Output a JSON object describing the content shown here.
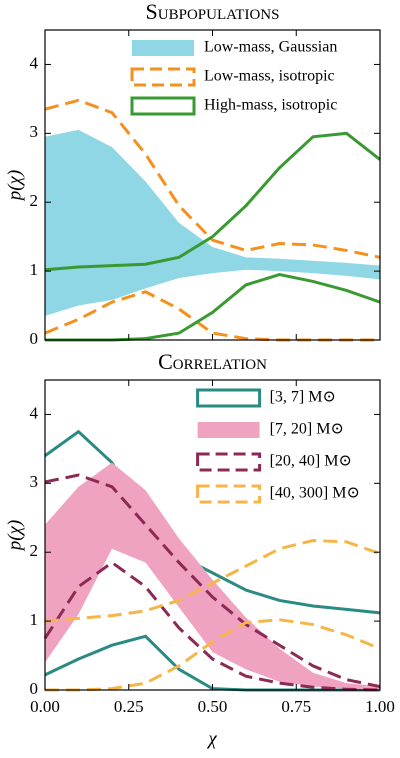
{
  "chart_data": [
    {
      "type": "line",
      "title": "Subpopulations",
      "ylabel": "p(χ)",
      "x": [
        0,
        0.1,
        0.2,
        0.3,
        0.4,
        0.5,
        0.6,
        0.7,
        0.8,
        0.9,
        1.0
      ],
      "xlim": [
        0,
        1
      ],
      "ylim": [
        0,
        4.5
      ],
      "xticks": [
        0,
        0.25,
        0.5,
        0.75,
        1
      ],
      "xticklabels": false,
      "yticks": [
        0,
        1,
        2,
        3,
        4
      ],
      "legend": "upper right",
      "series": [
        {
          "name": "Low-mass, Gaussian",
          "color": "#8fd7e5",
          "style": "fill",
          "upper": [
            2.95,
            3.05,
            2.8,
            2.3,
            1.7,
            1.35,
            1.2,
            1.18,
            1.15,
            1.12,
            1.08
          ],
          "lower": [
            0.35,
            0.5,
            0.58,
            0.75,
            0.9,
            0.97,
            1.02,
            1.0,
            0.97,
            0.93,
            0.88
          ]
        },
        {
          "name": "Low-mass, isotropic",
          "color": "#f5901e",
          "style": "dashed",
          "upper": [
            3.35,
            3.48,
            3.3,
            2.7,
            1.95,
            1.45,
            1.3,
            1.4,
            1.38,
            1.3,
            1.2
          ],
          "lower": [
            0.1,
            0.3,
            0.55,
            0.7,
            0.45,
            0.1,
            0.02,
            0,
            0,
            0,
            0
          ]
        },
        {
          "name": "High-mass, isotropic",
          "color": "#3a9a32",
          "style": "solid",
          "upper": [
            1.02,
            1.06,
            1.08,
            1.1,
            1.2,
            1.5,
            1.95,
            2.5,
            2.95,
            3.0,
            2.62
          ],
          "lower": [
            0,
            0,
            0,
            0.02,
            0.1,
            0.4,
            0.8,
            0.95,
            0.85,
            0.72,
            0.55
          ]
        }
      ]
    },
    {
      "type": "line",
      "title": "Correlation",
      "ylabel": "p(χ)",
      "xlabel": "χ",
      "x": [
        0,
        0.1,
        0.2,
        0.3,
        0.4,
        0.5,
        0.6,
        0.7,
        0.8,
        0.9,
        1.0
      ],
      "xlim": [
        0,
        1
      ],
      "ylim": [
        0,
        4.5
      ],
      "xticks": [
        {
          "value": 0,
          "label": "0.00"
        },
        {
          "value": 0.25,
          "label": "0.25"
        },
        {
          "value": 0.5,
          "label": "0.50"
        },
        {
          "value": 0.75,
          "label": "0.75"
        },
        {
          "value": 1,
          "label": "1.00"
        }
      ],
      "xticklabels": true,
      "yticks": [
        0,
        1,
        2,
        3,
        4
      ],
      "legend": "upper right",
      "series": [
        {
          "name": "[3, 7] M⊙",
          "color": "#2a8a84",
          "style": "solid",
          "upper": [
            3.4,
            3.75,
            3.3,
            2.5,
            1.95,
            1.7,
            1.45,
            1.3,
            1.22,
            1.17,
            1.12
          ],
          "lower": [
            0.22,
            0.45,
            0.65,
            0.78,
            0.3,
            0.02,
            0,
            0,
            0,
            0,
            0
          ]
        },
        {
          "name": "[7, 20] M⊙",
          "color": "#f0a3c0",
          "style": "fill",
          "upper": [
            2.4,
            2.95,
            3.3,
            2.9,
            2.2,
            1.6,
            1.05,
            0.6,
            0.25,
            0.1,
            0.05
          ],
          "lower": [
            0.4,
            1.1,
            2.05,
            1.85,
            1.2,
            0.55,
            0.3,
            0.12,
            0.05,
            0.02,
            0
          ]
        },
        {
          "name": "[20, 40] M⊙",
          "color": "#8b2a56",
          "style": "dashed",
          "upper": [
            3.02,
            3.12,
            2.95,
            2.4,
            1.85,
            1.35,
            0.95,
            0.65,
            0.35,
            0.15,
            0.05
          ],
          "lower": [
            0.75,
            1.5,
            1.85,
            1.5,
            0.9,
            0.45,
            0.2,
            0.1,
            0.04,
            0.01,
            0
          ]
        },
        {
          "name": "[40, 300] M⊙",
          "color": "#f7b548",
          "style": "dashed",
          "upper": [
            1.0,
            1.04,
            1.08,
            1.15,
            1.3,
            1.55,
            1.8,
            2.05,
            2.17,
            2.15,
            1.98
          ],
          "lower": [
            0,
            0,
            0.02,
            0.1,
            0.35,
            0.7,
            0.98,
            1.02,
            0.95,
            0.8,
            0.6
          ]
        }
      ]
    }
  ]
}
